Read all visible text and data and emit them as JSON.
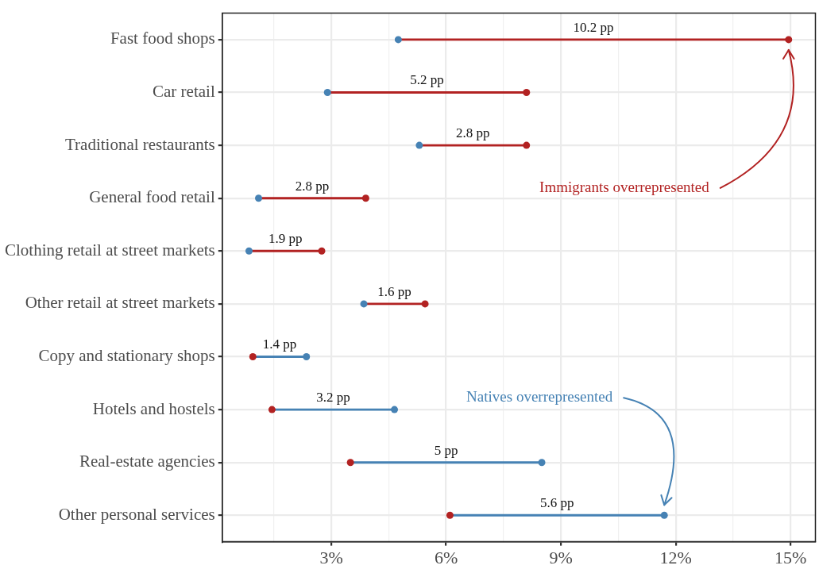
{
  "chart_data": {
    "type": "bar",
    "orientation": "horizontal",
    "categories": [
      "Fast food shops",
      "Car retail",
      "Traditional restaurants",
      "General food retail",
      "Clothing retail at street markets",
      "Other retail at street markets",
      "Copy and stationary shops",
      "Hotels and hostels",
      "Real-estate agencies",
      "Other personal services"
    ],
    "series": [
      {
        "base": [
          4.75,
          2.9,
          5.3,
          1.1,
          0.85,
          3.85,
          0.95,
          1.45,
          3.5,
          6.1
        ],
        "values": [
          10.2,
          5.2,
          2.8,
          2.8,
          1.9,
          1.6,
          1.4,
          3.2,
          5,
          5.6
        ],
        "colors": [
          "#b22222",
          "#b22222",
          "#b22222",
          "#b22222",
          "#b22222",
          "#b22222",
          "#4682b4",
          "#4682b4",
          "#4682b4",
          "#4682b4"
        ],
        "value_labels": [
          "10.2 pp",
          "5.2 pp",
          "2.8 pp",
          "2.8 pp",
          "1.9 pp",
          "1.6 pp",
          "1.4 pp",
          "3.2 pp",
          "5 pp",
          "5.6 pp"
        ]
      },
      {
        "type": "scatter",
        "color": "#b22222",
        "values": [
          14.95,
          8.1,
          8.1,
          3.9,
          2.75,
          5.45,
          0.95,
          1.45,
          3.5,
          6.1
        ]
      },
      {
        "type": "scatter",
        "color": "#4682b4",
        "values": [
          4.75,
          2.9,
          5.3,
          1.1,
          0.85,
          3.85,
          2.35,
          4.65,
          8.5,
          11.7
        ]
      }
    ],
    "annotations": [
      "Immigrants overrepresented",
      "Natives overrepresented"
    ],
    "xlim": [
      0.15,
      15.65
    ],
    "xticks": [
      {
        "value": 1.5,
        "label": null
      },
      {
        "value": 3,
        "label": "3%"
      },
      {
        "value": 4.5,
        "label": null
      },
      {
        "value": 6,
        "label": "6%"
      },
      {
        "value": 7.5,
        "label": null
      },
      {
        "value": 9,
        "label": "9%"
      },
      {
        "value": 10.5,
        "label": null
      },
      {
        "value": 12,
        "label": "12%"
      },
      {
        "value": 13.5,
        "label": null
      },
      {
        "value": 15,
        "label": "15%"
      }
    ],
    "grid": true,
    "legend": false,
    "marker": "circle"
  }
}
